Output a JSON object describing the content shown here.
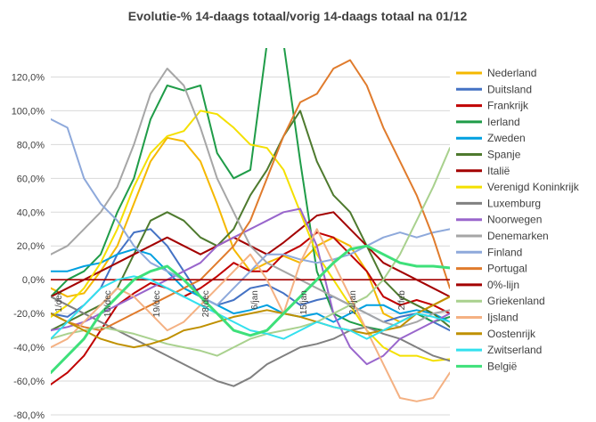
{
  "chart_data": {
    "type": "line",
    "title": "Evolutie-% 14-daags totaal/vorig  14-daags totaal na 01/12",
    "xlabel": "",
    "ylabel": "",
    "ylim": [
      -80,
      135
    ],
    "y_ticks": [
      -80,
      -60,
      -40,
      -20,
      0,
      20,
      40,
      60,
      80,
      100,
      120
    ],
    "y_tick_labels": [
      "-80,0%",
      "-60,0%",
      "-40,0%",
      "-20,0%",
      "0,0%",
      "20,0%",
      "40,0%",
      "60,0%",
      "80,0%",
      "100,0%",
      "120,0%"
    ],
    "x_tick_labels": [
      "1/dec",
      "10/dec",
      "19/dec",
      "28/dec",
      "6/jan",
      "15/jan",
      "24/jan",
      "2/feb"
    ],
    "grid": "horizontal",
    "legend_position": "right",
    "x": [
      0,
      4,
      8,
      12,
      16,
      20,
      24,
      28,
      32,
      36,
      40,
      44,
      48,
      52,
      56,
      60,
      64,
      68,
      72,
      76,
      80,
      84,
      88,
      92,
      96
    ],
    "series": [
      {
        "name": "Nederland",
        "color": "#f5b800",
        "values": [
          -5,
          -10,
          -8,
          5,
          20,
          45,
          70,
          84,
          82,
          70,
          45,
          18,
          5,
          10,
          14,
          10,
          20,
          25,
          20,
          5,
          -20,
          -25,
          -20,
          -15,
          -10
        ]
      },
      {
        "name": "Duitsland",
        "color": "#4472c4",
        "values": [
          -20,
          -22,
          -15,
          -5,
          15,
          28,
          30,
          20,
          5,
          -10,
          -15,
          -12,
          -5,
          -3,
          -8,
          -15,
          -12,
          -10,
          -15,
          -20,
          -25,
          -22,
          -20,
          -25,
          -30
        ]
      },
      {
        "name": "Frankrijk",
        "color": "#c00000",
        "values": [
          -62,
          -55,
          -45,
          -30,
          -15,
          -8,
          -2,
          -5,
          -10,
          -5,
          2,
          10,
          5,
          5,
          15,
          20,
          28,
          25,
          15,
          5,
          -10,
          -15,
          -12,
          -15,
          -20
        ]
      },
      {
        "name": "Ierland",
        "color": "#1f9c48",
        "values": [
          -10,
          0,
          5,
          15,
          40,
          60,
          95,
          115,
          112,
          115,
          75,
          60,
          65,
          140,
          140,
          70,
          5,
          -20,
          -25,
          -28,
          -30,
          -25,
          -20,
          -25,
          -22
        ]
      },
      {
        "name": "Zweden",
        "color": "#00a0e0",
        "values": [
          5,
          5,
          8,
          10,
          15,
          18,
          15,
          5,
          -5,
          -10,
          -15,
          -20,
          -18,
          -15,
          -20,
          -22,
          -20,
          -25,
          -20,
          -15,
          -15,
          -20,
          -18,
          -20,
          -25
        ]
      },
      {
        "name": "Spanje",
        "color": "#4e7a2e",
        "values": [
          -30,
          -25,
          -20,
          -15,
          -5,
          15,
          35,
          40,
          35,
          25,
          20,
          30,
          50,
          65,
          85,
          100,
          70,
          50,
          40,
          20,
          0,
          -10,
          -15,
          -20,
          -28
        ]
      },
      {
        "name": "Italië",
        "color": "#a30000",
        "values": [
          -10,
          -5,
          0,
          5,
          10,
          15,
          20,
          25,
          20,
          15,
          20,
          25,
          20,
          15,
          22,
          30,
          38,
          40,
          30,
          20,
          10,
          5,
          0,
          -5,
          -10
        ]
      },
      {
        "name": "Verenigd Koninkrijk",
        "color": "#f4e000",
        "values": [
          -22,
          -15,
          -5,
          10,
          30,
          55,
          75,
          85,
          88,
          100,
          98,
          90,
          80,
          78,
          65,
          40,
          15,
          0,
          -15,
          -30,
          -40,
          -45,
          -45,
          -48,
          -47
        ]
      },
      {
        "name": "Luxemburg",
        "color": "#808080",
        "values": [
          -10,
          -15,
          -20,
          -25,
          -30,
          -35,
          -40,
          -45,
          -50,
          -55,
          -60,
          -63,
          -58,
          -50,
          -45,
          -40,
          -38,
          -35,
          -30,
          -28,
          -32,
          -35,
          -40,
          -45,
          -48
        ]
      },
      {
        "name": "Noorwegen",
        "color": "#9966cc",
        "values": [
          -30,
          -28,
          -25,
          -20,
          -15,
          -10,
          -5,
          0,
          5,
          10,
          20,
          25,
          30,
          35,
          40,
          42,
          20,
          -20,
          -40,
          -50,
          -45,
          -35,
          -30,
          -25,
          -20
        ]
      },
      {
        "name": "Denemarken",
        "color": "#a6a6a6",
        "values": [
          15,
          20,
          30,
          40,
          55,
          80,
          110,
          125,
          115,
          90,
          60,
          40,
          20,
          10,
          5,
          0,
          -5,
          -10,
          -15,
          -20,
          -25,
          -28,
          -25,
          -20,
          -18
        ]
      },
      {
        "name": "Finland",
        "color": "#8ea9db",
        "values": [
          95,
          90,
          60,
          45,
          35,
          20,
          10,
          5,
          0,
          -10,
          -15,
          -5,
          5,
          15,
          15,
          12,
          10,
          12,
          15,
          20,
          25,
          28,
          25,
          28,
          30
        ]
      },
      {
        "name": "Portugal",
        "color": "#e07b2c",
        "values": [
          -20,
          -25,
          -28,
          -30,
          -25,
          -20,
          -15,
          -10,
          -5,
          0,
          10,
          20,
          35,
          60,
          85,
          105,
          110,
          125,
          130,
          115,
          90,
          70,
          50,
          25,
          -5
        ]
      },
      {
        "name": "0%-lijn",
        "color": "#a30000",
        "values": [
          0,
          0,
          0,
          0,
          0,
          0,
          0,
          0,
          0,
          0,
          0,
          0,
          0,
          0,
          0,
          0,
          0,
          0,
          0,
          0,
          0,
          0,
          0,
          0,
          0
        ]
      },
      {
        "name": "Griekenland",
        "color": "#a9d18e",
        "values": [
          -35,
          -32,
          -30,
          -28,
          -30,
          -32,
          -35,
          -38,
          -40,
          -42,
          -45,
          -40,
          -35,
          -32,
          -30,
          -28,
          -25,
          -20,
          -15,
          -10,
          0,
          15,
          35,
          55,
          78
        ]
      },
      {
        "name": "Ijsland",
        "color": "#f4b183",
        "values": [
          -40,
          -35,
          -25,
          -15,
          -5,
          -10,
          -20,
          -30,
          -25,
          -15,
          -5,
          5,
          15,
          0,
          -20,
          10,
          30,
          10,
          -10,
          -30,
          -50,
          -70,
          -72,
          -70,
          -55
        ]
      },
      {
        "name": "Oostenrijk",
        "color": "#bf9000",
        "values": [
          -20,
          -25,
          -30,
          -35,
          -38,
          -40,
          -38,
          -35,
          -30,
          -28,
          -25,
          -22,
          -20,
          -18,
          -20,
          -22,
          -25,
          -28,
          -30,
          -32,
          -30,
          -28,
          -20,
          -15,
          -10
        ]
      },
      {
        "name": "Zwitserland",
        "color": "#33e0ee",
        "values": [
          -35,
          -25,
          -15,
          -5,
          0,
          2,
          0,
          -5,
          -10,
          -15,
          -20,
          -25,
          -30,
          -32,
          -35,
          -30,
          -25,
          -28,
          -30,
          -35,
          -30,
          -25,
          -20,
          -22,
          -25
        ]
      },
      {
        "name": "België",
        "color": "#3ee07a",
        "values": [
          -55,
          -45,
          -35,
          -20,
          -10,
          0,
          5,
          8,
          0,
          -10,
          -20,
          -30,
          -33,
          -30,
          -20,
          -10,
          0,
          10,
          18,
          20,
          15,
          10,
          8,
          8,
          7
        ]
      }
    ]
  }
}
